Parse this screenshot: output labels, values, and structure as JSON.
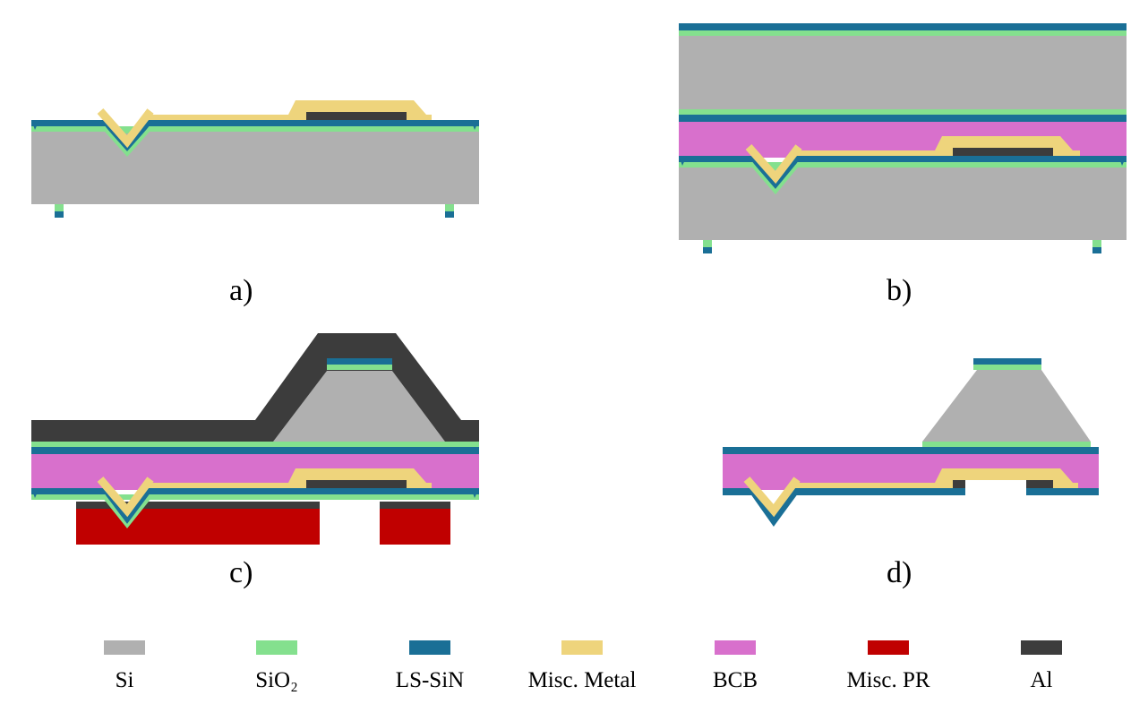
{
  "colors": {
    "si": "#b0b0b0",
    "sio2": "#84e08e",
    "lssin": "#1a6f96",
    "metal": "#eed47c",
    "bcb": "#d870cc",
    "pr": "#c00000",
    "al": "#3c3c3c"
  },
  "panels": {
    "a": {
      "label": "a)"
    },
    "b": {
      "label": "b)"
    },
    "c": {
      "label": "c)"
    },
    "d": {
      "label": "d)"
    }
  },
  "legend": [
    {
      "key": "si",
      "label": "Si",
      "icon": "si-swatch"
    },
    {
      "key": "sio2",
      "label": "SiO₂",
      "icon": "sio2-swatch"
    },
    {
      "key": "lssin",
      "label": "LS-SiN",
      "icon": "lssin-swatch"
    },
    {
      "key": "metal",
      "label": "Misc. Metal",
      "icon": "metal-swatch"
    },
    {
      "key": "bcb",
      "label": "BCB",
      "icon": "bcb-swatch"
    },
    {
      "key": "pr",
      "label": "Misc. PR",
      "icon": "pr-swatch"
    },
    {
      "key": "al",
      "label": "Al",
      "icon": "al-swatch"
    }
  ]
}
